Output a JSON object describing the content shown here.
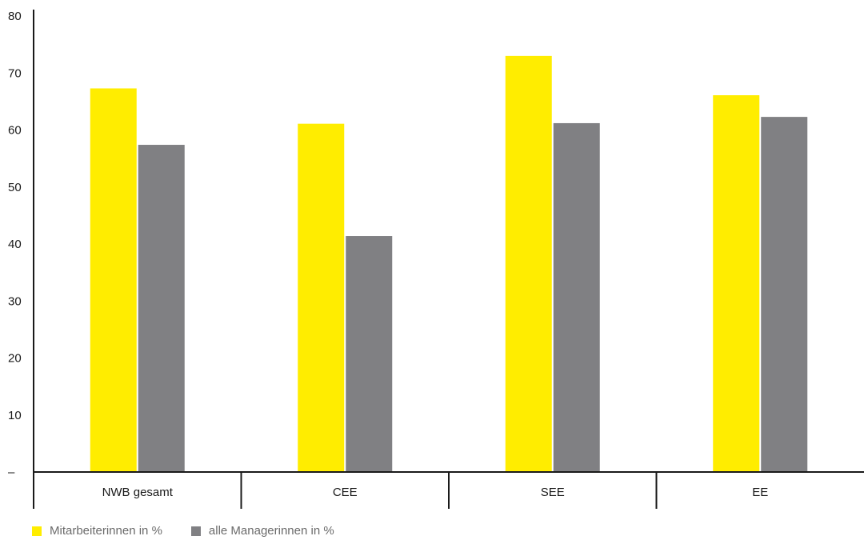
{
  "chart_data": {
    "type": "bar",
    "categories": [
      "NWB gesamt",
      "CEE",
      "SEE",
      "EE"
    ],
    "series": [
      {
        "name": "Mitarbeiterinnen in %",
        "values": [
          67.3,
          61.1,
          73.0,
          66.1
        ],
        "color": "#ffed00"
      },
      {
        "name": "alle Managerinnen in %",
        "values": [
          57.4,
          41.4,
          61.2,
          62.3
        ],
        "color": "#808083"
      }
    ],
    "ylim": [
      0,
      80
    ],
    "yticks": [
      {
        "value": 0,
        "label": "–"
      },
      {
        "value": 10,
        "label": "10"
      },
      {
        "value": 20,
        "label": "20"
      },
      {
        "value": 30,
        "label": "30"
      },
      {
        "value": 40,
        "label": "40"
      },
      {
        "value": 50,
        "label": "50"
      },
      {
        "value": 60,
        "label": "60"
      },
      {
        "value": 70,
        "label": "70"
      },
      {
        "value": 80,
        "label": "80"
      }
    ],
    "grid": false,
    "legend_position": "bottom-left"
  }
}
